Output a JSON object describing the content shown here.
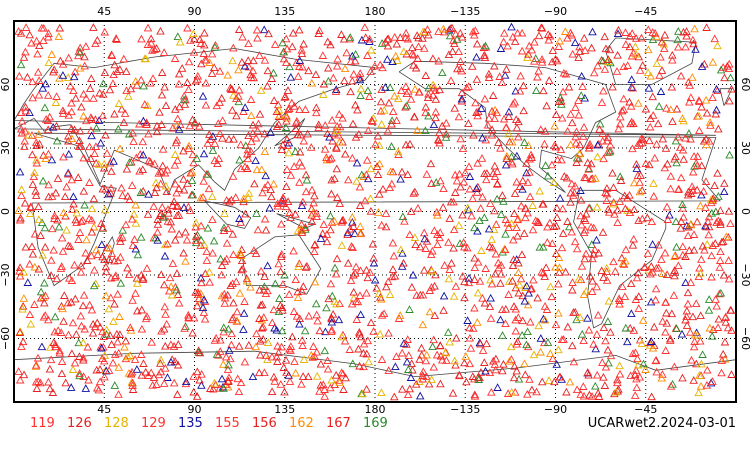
{
  "map": {
    "projection": "cylindrical equidistant",
    "lon_range": [
      0,
      360
    ],
    "lat_range": [
      -90,
      90
    ],
    "top_lon_labels": [
      "45",
      "90",
      "135",
      "180",
      "−135",
      "−90",
      "−45"
    ],
    "bottom_lon_labels": [
      "45",
      "90",
      "135",
      "180",
      "−135",
      "−90",
      "−45"
    ],
    "lat_labels": [
      "60",
      "30",
      "0",
      "−30",
      "−60"
    ],
    "marker": "open-triangle",
    "colors": {
      "grid": "#000000",
      "coast": "#444444"
    }
  },
  "legend": [
    {
      "label": "119",
      "color": "#ff3030"
    },
    {
      "label": "126",
      "color": "#e62020"
    },
    {
      "label": "128",
      "color": "#e6b400"
    },
    {
      "label": "129",
      "color": "#ff3030"
    },
    {
      "label": "135",
      "color": "#1010a0"
    },
    {
      "label": "155",
      "color": "#ff3030"
    },
    {
      "label": "156",
      "color": "#e62020"
    },
    {
      "label": "162",
      "color": "#ff8c00"
    },
    {
      "label": "167",
      "color": "#e62020"
    },
    {
      "label": "169",
      "color": "#2a8a2a"
    }
  ],
  "footer": {
    "dataset_label": "UCARwet2.2024-03-01"
  }
}
